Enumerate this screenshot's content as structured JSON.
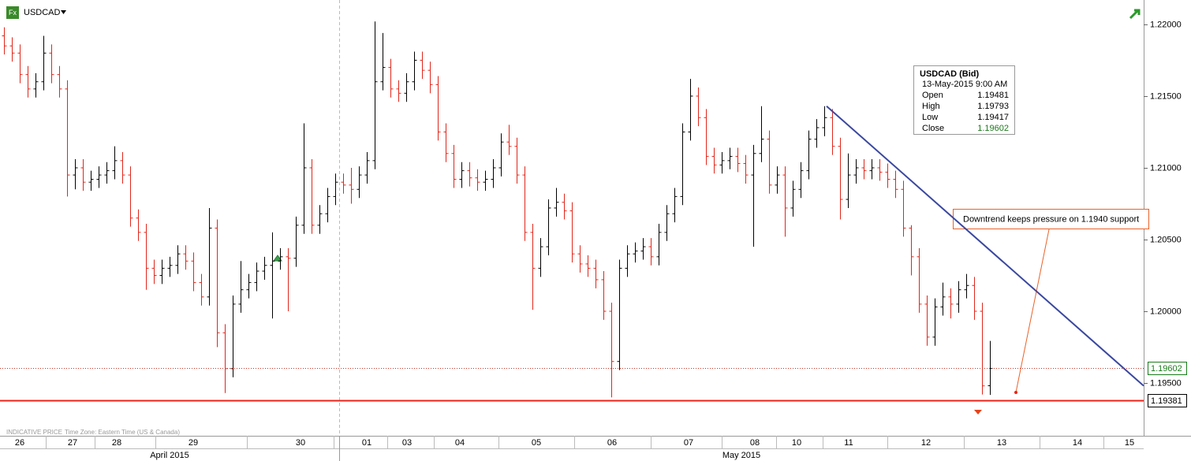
{
  "chart_data": {
    "type": "ohlc",
    "symbol": "USDCAD",
    "up_color": "#000000",
    "down_color": "#e0261b",
    "xlim": [
      -0.5,
      144.5
    ],
    "ylim": [
      1.19176,
      1.2217
    ],
    "yticks": [
      {
        "value": 1.22,
        "label": "1.22000"
      },
      {
        "value": 1.215,
        "label": "1.21500"
      },
      {
        "value": 1.21,
        "label": "1.21000"
      },
      {
        "value": 1.205,
        "label": "1.20500"
      },
      {
        "value": 1.2,
        "label": "1.20000"
      },
      {
        "value": 1.195,
        "label": "1.19500"
      }
    ],
    "xticks": [
      {
        "value": 2,
        "label": "26"
      },
      {
        "value": 8.7,
        "label": "27"
      },
      {
        "value": 14.3,
        "label": "28"
      },
      {
        "value": 24,
        "label": "29"
      },
      {
        "value": 37.6,
        "label": "30"
      },
      {
        "value": 46,
        "label": "01"
      },
      {
        "value": 51.1,
        "label": "03"
      },
      {
        "value": 57.8,
        "label": "04"
      },
      {
        "value": 67.5,
        "label": "05"
      },
      {
        "value": 77.1,
        "label": "06"
      },
      {
        "value": 86.8,
        "label": "07"
      },
      {
        "value": 95.2,
        "label": "08"
      },
      {
        "value": 100.5,
        "label": "10"
      },
      {
        "value": 107.1,
        "label": "11"
      },
      {
        "value": 116.9,
        "label": "12"
      },
      {
        "value": 126.5,
        "label": "13"
      },
      {
        "value": 136.1,
        "label": "14"
      },
      {
        "value": 142.7,
        "label": "15"
      }
    ],
    "months": [
      {
        "value": 21,
        "label": "April 2015"
      },
      {
        "value": 93.5,
        "label": "May 2015"
      }
    ],
    "ohlc": [
      [
        1.2192,
        1.2198,
        1.2179,
        1.2185
      ],
      [
        1.2185,
        1.2191,
        1.2174,
        1.218
      ],
      [
        1.218,
        1.2186,
        1.2159,
        1.2165
      ],
      [
        1.2165,
        1.2171,
        1.2149,
        1.2155
      ],
      [
        1.2155,
        1.2166,
        1.2149,
        1.216
      ],
      [
        1.216,
        1.2192,
        1.2154,
        1.218
      ],
      [
        1.218,
        1.2186,
        1.2159,
        1.2165
      ],
      [
        1.2165,
        1.2171,
        1.2149,
        1.2155
      ],
      [
        1.2155,
        1.2161,
        1.208,
        1.2095
      ],
      [
        1.2095,
        1.2106,
        1.2085,
        1.21
      ],
      [
        1.21,
        1.2106,
        1.2084,
        1.209
      ],
      [
        1.209,
        1.2098,
        1.2084,
        1.2092
      ],
      [
        1.2092,
        1.2101,
        1.2086,
        1.2095
      ],
      [
        1.2095,
        1.2104,
        1.2089,
        1.2098
      ],
      [
        1.2098,
        1.2115,
        1.2092,
        1.2105
      ],
      [
        1.2105,
        1.2111,
        1.2089,
        1.2095
      ],
      [
        1.2095,
        1.2101,
        1.2059,
        1.2065
      ],
      [
        1.2065,
        1.2071,
        1.2049,
        1.2055
      ],
      [
        1.2055,
        1.2061,
        1.2015,
        1.203
      ],
      [
        1.203,
        1.2036,
        1.2019,
        1.2025
      ],
      [
        1.2025,
        1.2036,
        1.2019,
        1.203
      ],
      [
        1.203,
        1.2038,
        1.2024,
        1.2032
      ],
      [
        1.2032,
        1.2046,
        1.2026,
        1.204
      ],
      [
        1.204,
        1.2046,
        1.2029,
        1.2035
      ],
      [
        1.2035,
        1.2041,
        1.2014,
        1.202
      ],
      [
        1.202,
        1.2026,
        1.2004,
        1.201
      ],
      [
        1.201,
        1.2072,
        1.2004,
        1.2058
      ],
      [
        1.2058,
        1.2064,
        1.1975,
        1.1985
      ],
      [
        1.1985,
        1.1991,
        1.1943,
        1.196
      ],
      [
        1.196,
        1.2011,
        1.1954,
        1.2005
      ],
      [
        1.2005,
        1.2035,
        1.1999,
        1.2015
      ],
      [
        1.2015,
        1.2026,
        1.2009,
        1.202
      ],
      [
        1.202,
        1.2034,
        1.2014,
        1.2028
      ],
      [
        1.2028,
        1.2038,
        1.2022,
        1.2032
      ],
      [
        1.2032,
        1.2055,
        1.1995,
        1.2035
      ],
      [
        1.2035,
        1.2044,
        1.2029,
        1.2038
      ],
      [
        1.2038,
        1.2044,
        1.2,
        1.2037
      ],
      [
        1.2037,
        1.2066,
        1.2031,
        1.206
      ],
      [
        1.206,
        1.2131,
        1.2054,
        1.21
      ],
      [
        1.21,
        1.2106,
        1.2054,
        1.206
      ],
      [
        1.206,
        1.2074,
        1.2054,
        1.2068
      ],
      [
        1.2068,
        1.2086,
        1.2062,
        1.208
      ],
      [
        1.208,
        1.2096,
        1.2074,
        1.209
      ],
      [
        1.209,
        1.2096,
        1.2082,
        1.2088
      ],
      [
        1.2088,
        1.21,
        1.2075,
        1.2085
      ],
      [
        1.2085,
        1.2101,
        1.2079,
        1.2095
      ],
      [
        1.2095,
        1.2111,
        1.2089,
        1.2105
      ],
      [
        1.2105,
        1.2202,
        1.2099,
        1.216
      ],
      [
        1.216,
        1.2194,
        1.2154,
        1.217
      ],
      [
        1.217,
        1.2176,
        1.2149,
        1.2155
      ],
      [
        1.2155,
        1.2161,
        1.2146,
        1.2152
      ],
      [
        1.2152,
        1.2166,
        1.2146,
        1.216
      ],
      [
        1.216,
        1.2181,
        1.2154,
        1.2175
      ],
      [
        1.2175,
        1.2181,
        1.2162,
        1.2168
      ],
      [
        1.2168,
        1.2174,
        1.2152,
        1.2158
      ],
      [
        1.2158,
        1.2164,
        1.2119,
        1.2125
      ],
      [
        1.2125,
        1.2131,
        1.2104,
        1.211
      ],
      [
        1.211,
        1.2116,
        1.2086,
        1.2092
      ],
      [
        1.2092,
        1.2104,
        1.2086,
        1.2098
      ],
      [
        1.2098,
        1.2104,
        1.2087,
        1.2093
      ],
      [
        1.2093,
        1.2099,
        1.2084,
        1.209
      ],
      [
        1.209,
        1.2098,
        1.2084,
        1.2092
      ],
      [
        1.2092,
        1.2106,
        1.2086,
        1.21
      ],
      [
        1.21,
        1.2124,
        1.2094,
        1.2118
      ],
      [
        1.2118,
        1.213,
        1.2109,
        1.2115
      ],
      [
        1.2115,
        1.2121,
        1.2089,
        1.2095
      ],
      [
        1.2095,
        1.2101,
        1.2049,
        1.2055
      ],
      [
        1.2055,
        1.2061,
        1.2001,
        1.203
      ],
      [
        1.203,
        1.2051,
        1.2024,
        1.2045
      ],
      [
        1.2045,
        1.2078,
        1.2039,
        1.2072
      ],
      [
        1.2072,
        1.2086,
        1.2066,
        1.2076
      ],
      [
        1.2076,
        1.2082,
        1.2064,
        1.207
      ],
      [
        1.207,
        1.2076,
        1.2034,
        1.204
      ],
      [
        1.204,
        1.2046,
        1.2027,
        1.2033
      ],
      [
        1.2033,
        1.2039,
        1.2024,
        1.203
      ],
      [
        1.203,
        1.2036,
        1.2016,
        1.2022
      ],
      [
        1.2022,
        1.2028,
        1.1994,
        1.2
      ],
      [
        1.2,
        1.2006,
        1.194,
        1.1965
      ],
      [
        1.1965,
        1.2036,
        1.1959,
        1.203
      ],
      [
        1.203,
        1.2046,
        1.2024,
        1.204
      ],
      [
        1.204,
        1.2048,
        1.2034,
        1.2042
      ],
      [
        1.2042,
        1.2051,
        1.2036,
        1.2045
      ],
      [
        1.2045,
        1.2051,
        1.2032,
        1.2038
      ],
      [
        1.2038,
        1.2061,
        1.2032,
        1.2055
      ],
      [
        1.2055,
        1.2074,
        1.2049,
        1.2068
      ],
      [
        1.2068,
        1.2086,
        1.2062,
        1.208
      ],
      [
        1.208,
        1.2131,
        1.2074,
        1.2125
      ],
      [
        1.2125,
        1.2162,
        1.2119,
        1.215
      ],
      [
        1.215,
        1.2156,
        1.2129,
        1.2135
      ],
      [
        1.2135,
        1.2141,
        1.2102,
        1.2108
      ],
      [
        1.2108,
        1.2114,
        1.2096,
        1.2102
      ],
      [
        1.2102,
        1.2111,
        1.2096,
        1.2105
      ],
      [
        1.2105,
        1.2114,
        1.2099,
        1.2108
      ],
      [
        1.2108,
        1.2114,
        1.2097,
        1.2103
      ],
      [
        1.2103,
        1.2109,
        1.2089,
        1.2095
      ],
      [
        1.2095,
        1.2116,
        1.2045,
        1.211
      ],
      [
        1.211,
        1.2143,
        1.2104,
        1.212
      ],
      [
        1.212,
        1.2126,
        1.2082,
        1.2088
      ],
      [
        1.2088,
        1.2101,
        1.2082,
        1.2095
      ],
      [
        1.2095,
        1.2101,
        1.2052,
        1.2072
      ],
      [
        1.2072,
        1.2091,
        1.2066,
        1.2085
      ],
      [
        1.2085,
        1.2104,
        1.2079,
        1.2098
      ],
      [
        1.2098,
        1.2126,
        1.2092,
        1.212
      ],
      [
        1.212,
        1.2134,
        1.2114,
        1.2128
      ],
      [
        1.2128,
        1.2143,
        1.2122,
        1.2135
      ],
      [
        1.2135,
        1.2141,
        1.2109,
        1.2115
      ],
      [
        1.2115,
        1.2121,
        1.2064,
        1.2078
      ],
      [
        1.2078,
        1.211,
        1.2072,
        1.2095
      ],
      [
        1.2095,
        1.2106,
        1.2089,
        1.21
      ],
      [
        1.21,
        1.2106,
        1.2092,
        1.2098
      ],
      [
        1.2098,
        1.2106,
        1.2092,
        1.21
      ],
      [
        1.21,
        1.2106,
        1.2091,
        1.2097
      ],
      [
        1.2097,
        1.2103,
        1.2086,
        1.2092
      ],
      [
        1.2092,
        1.2098,
        1.2079,
        1.2085
      ],
      [
        1.2085,
        1.2091,
        1.2052,
        1.2058
      ],
      [
        1.2058,
        1.206,
        1.2025,
        1.2038
      ],
      [
        1.2038,
        1.2044,
        1.1999,
        1.2005
      ],
      [
        1.2005,
        1.2011,
        1.1976,
        1.1982
      ],
      [
        1.1982,
        1.2009,
        1.1976,
        1.2003
      ],
      [
        1.2003,
        1.202,
        1.1997,
        1.201
      ],
      [
        1.201,
        1.2016,
        1.1995,
        1.2005
      ],
      [
        1.2005,
        1.2021,
        1.1999,
        1.2015
      ],
      [
        1.2015,
        1.2026,
        1.2009,
        1.2018
      ],
      [
        1.2018,
        1.2024,
        1.1994,
        1.2
      ],
      [
        1.2,
        1.2006,
        1.1942,
        1.1948
      ],
      [
        1.19481,
        1.19793,
        1.19417,
        1.19602
      ]
    ],
    "price_lines": [
      {
        "value": 1.19602,
        "color": "#c0392b",
        "style": "dotted",
        "label_color": "#1a7a1a"
      },
      {
        "value": 1.19381,
        "color": "#e8231a",
        "style": "solid",
        "label_color": "#000000"
      }
    ],
    "trendline": {
      "x": [
        104.3,
        144.5
      ],
      "y": [
        1.2143,
        1.1948
      ],
      "color": "#3a48a0"
    },
    "annotation": "Downtrend keeps pressure on 1.1940 support",
    "tooltip": {
      "title": "USDCAD (Bid)",
      "date": "13-May-2015 9:00 AM",
      "rows": [
        {
          "label": "Open",
          "value": 1.19481
        },
        {
          "label": "High",
          "value": 1.19793
        },
        {
          "label": "Low",
          "value": 1.19417
        },
        {
          "label": "Close",
          "value": 1.19602
        }
      ]
    },
    "footer": [
      "INDICATIVE PRICE",
      "Time Zone: Eastern Time (US & Canada)"
    ]
  }
}
